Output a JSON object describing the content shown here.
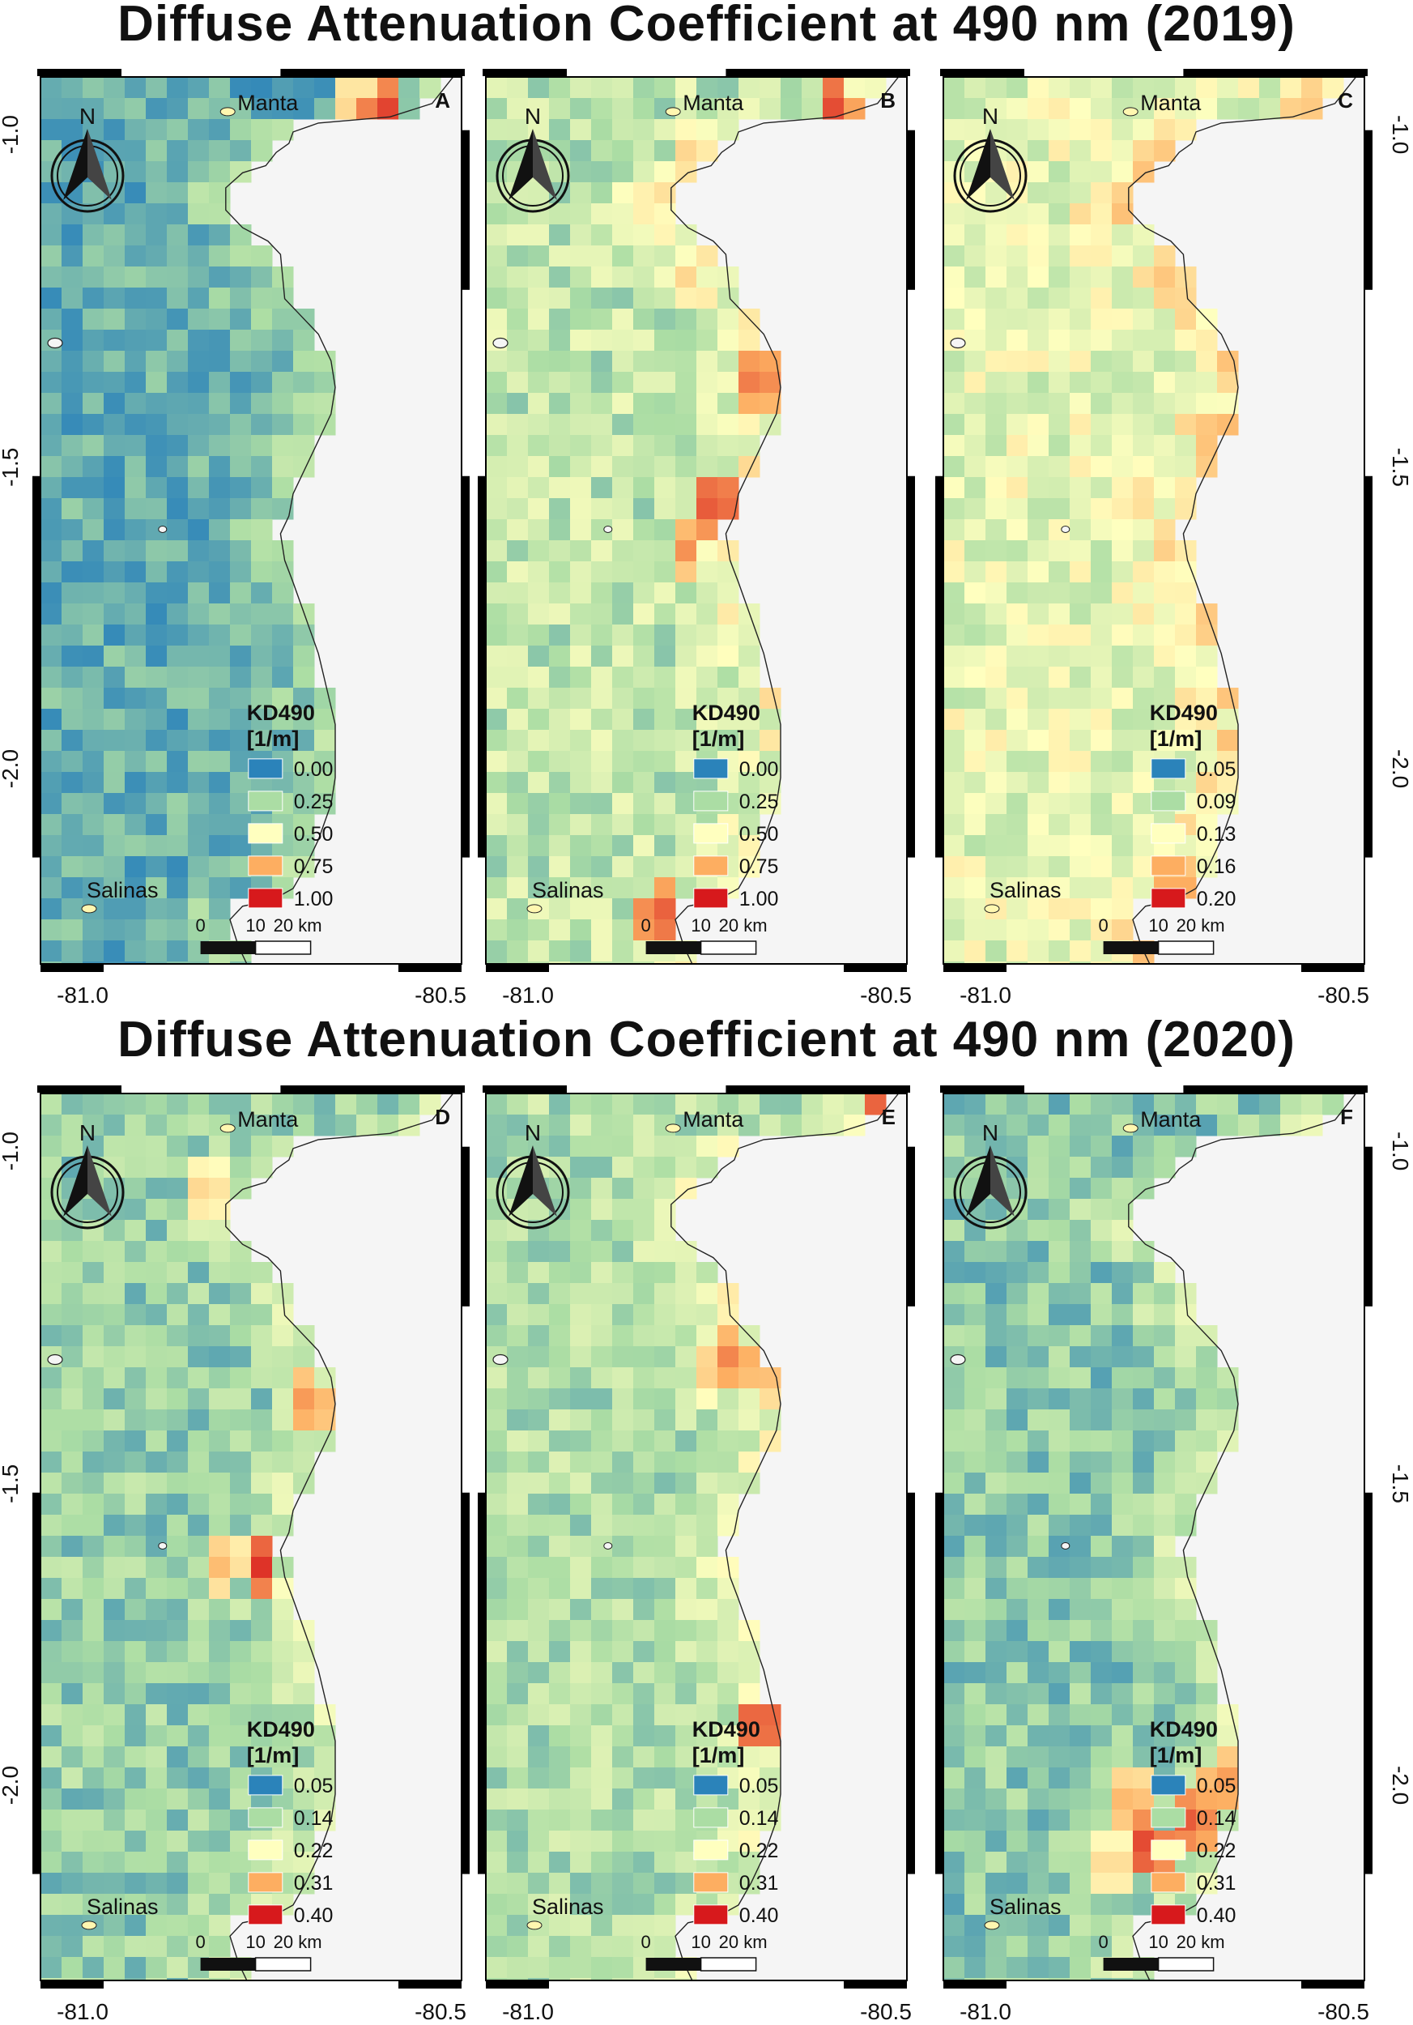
{
  "sections": [
    {
      "title": "Diffuse Attenuation Coefficient at 490 nm (2019)",
      "panels": [
        {
          "letter": "A",
          "legend_title_line1": "KD490",
          "legend_title_line2": "[1/m]",
          "legend_values": [
            "0.00",
            "0.25",
            "0.50",
            "0.75",
            "1.00"
          ],
          "scheme": "low"
        },
        {
          "letter": "B",
          "legend_title_line1": "KD490",
          "legend_title_line2": "[1/m]",
          "legend_values": [
            "0.00",
            "0.25",
            "0.50",
            "0.75",
            "1.00"
          ],
          "scheme": "mid"
        },
        {
          "letter": "C",
          "legend_title_line1": "KD490",
          "legend_title_line2": "[1/m]",
          "legend_values": [
            "0.05",
            "0.09",
            "0.13",
            "0.16",
            "0.20"
          ],
          "scheme": "mid2"
        }
      ]
    },
    {
      "title": "Diffuse Attenuation Coefficient at 490 nm (2020)",
      "panels": [
        {
          "letter": "D",
          "legend_title_line1": "KD490",
          "legend_title_line2": "[1/m]",
          "legend_values": [
            "0.05",
            "0.14",
            "0.22",
            "0.31",
            "0.40"
          ],
          "scheme": "low2"
        },
        {
          "letter": "E",
          "legend_title_line1": "KD490",
          "legend_title_line2": "[1/m]",
          "legend_values": [
            "0.05",
            "0.14",
            "0.22",
            "0.31",
            "0.40"
          ],
          "scheme": "mid3"
        },
        {
          "letter": "F",
          "legend_title_line1": "KD490",
          "legend_title_line2": "[1/m]",
          "legend_values": [
            "0.05",
            "0.14",
            "0.22",
            "0.31",
            "0.40"
          ],
          "scheme": "low3"
        }
      ]
    }
  ],
  "place_labels": {
    "north": "Manta",
    "south": "Salinas"
  },
  "north_arrow_label": "N",
  "scale_bar_labels": [
    "0",
    "10",
    "20 km"
  ],
  "lon_ticks": [
    "-81.0",
    "-80.5"
  ],
  "lat_ticks": [
    "-1.0",
    "-1.5",
    "-2.0"
  ],
  "legend_colors": [
    "#2b83ba",
    "#abdda4",
    "#ffffbf",
    "#fdae61",
    "#d7191c"
  ],
  "land_color": "#f5f5f5"
}
